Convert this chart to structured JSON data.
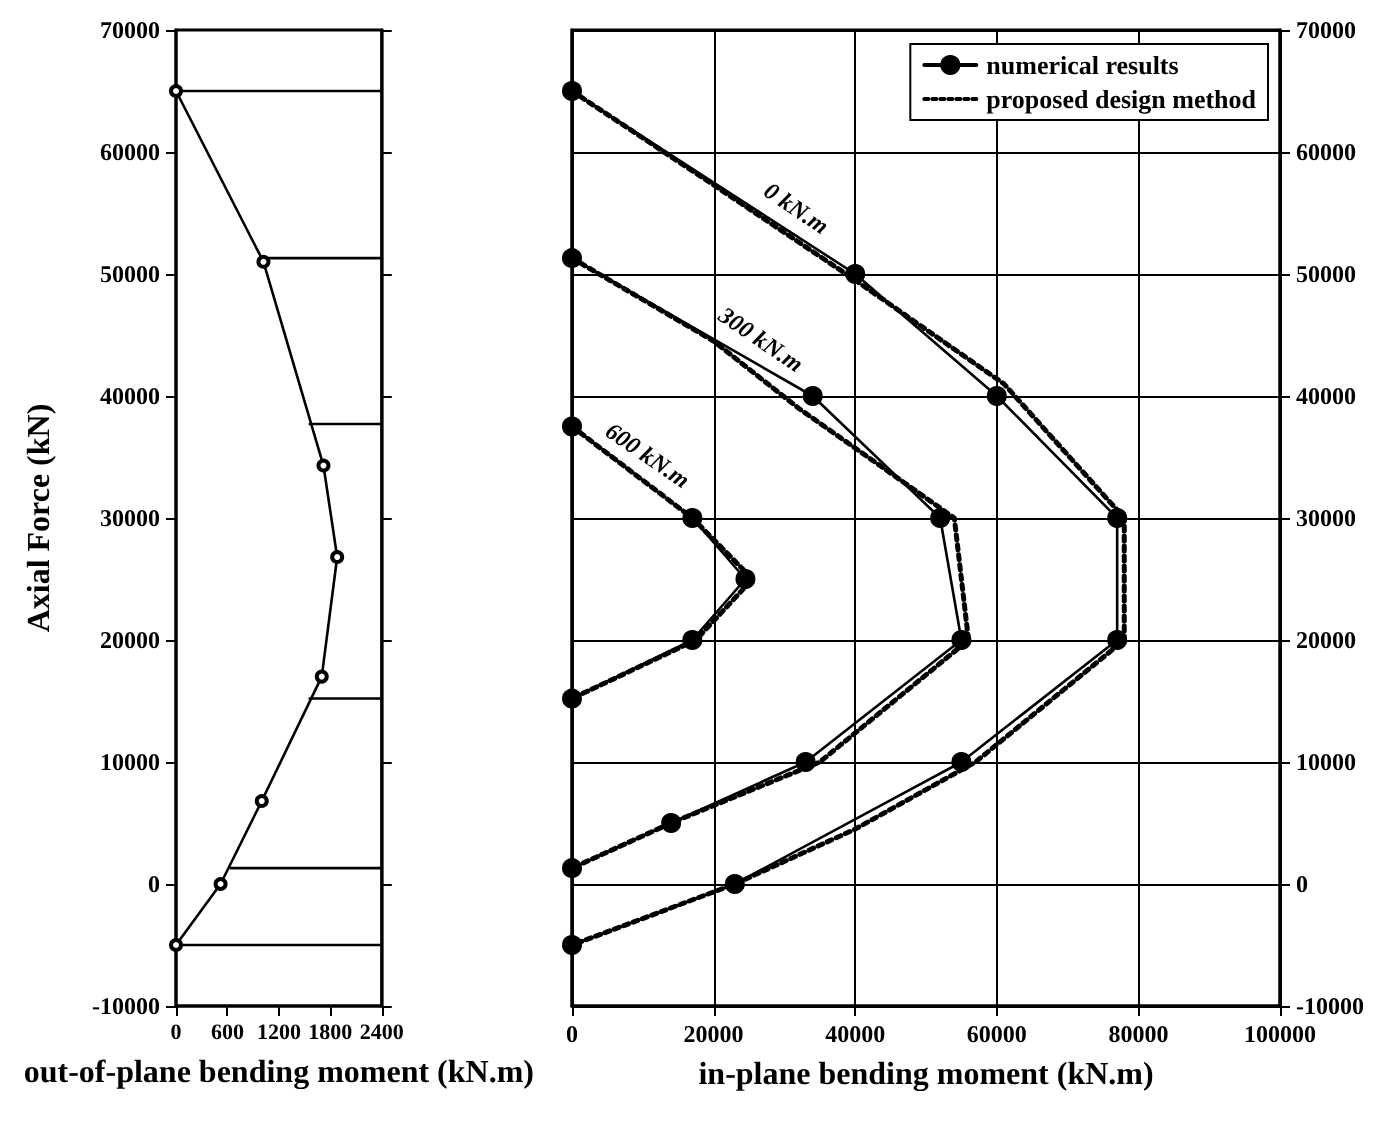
{
  "chart_data": [
    {
      "type": "line",
      "xlabel": "out-of-plane bending moment (kN.m)",
      "ylabel": "Axial Force (kN)",
      "xlim": [
        0,
        2400
      ],
      "xticks": [
        0,
        600,
        1200,
        1800,
        2400
      ],
      "ylim": [
        -10000,
        70000
      ],
      "yticks": [
        -10000,
        0,
        10000,
        20000,
        30000,
        40000,
        50000,
        60000,
        70000
      ],
      "grid": false,
      "series": [
        {
          "color": "#000000",
          "marker": "circle",
          "line_style": "solid",
          "x": [
            0,
            1020,
            1720,
            1880,
            1700,
            1000,
            520,
            0
          ],
          "values": [
            65000,
            51000,
            34300,
            26800,
            17000,
            6800,
            0,
            -5000
          ]
        },
        {
          "color": "#000000",
          "marker": "none",
          "line_style": "solid",
          "x": [
            0,
            2400
          ],
          "values": [
            65000,
            65000
          ]
        },
        {
          "color": "#000000",
          "marker": "none",
          "line_style": "solid",
          "x": [
            1040,
            2400
          ],
          "values": [
            51300,
            51300
          ]
        },
        {
          "color": "#000000",
          "marker": "none",
          "line_style": "solid",
          "x": [
            1560,
            2400
          ],
          "values": [
            37700,
            37700
          ]
        },
        {
          "color": "#000000",
          "marker": "none",
          "line_style": "solid",
          "x": [
            1560,
            2400
          ],
          "values": [
            15200,
            15200
          ]
        },
        {
          "color": "#000000",
          "marker": "none",
          "line_style": "solid",
          "x": [
            640,
            2400
          ],
          "values": [
            1300,
            1300
          ]
        },
        {
          "color": "#000000",
          "marker": "none",
          "line_style": "solid",
          "x": [
            0,
            2400
          ],
          "values": [
            -5000,
            -5000
          ]
        }
      ]
    },
    {
      "type": "line",
      "xlabel": "in-plane bending moment (kN.m)",
      "xlim": [
        0,
        100000
      ],
      "xticks": [
        0,
        20000,
        40000,
        60000,
        80000,
        100000
      ],
      "ylim": [
        -10000,
        70000
      ],
      "yticks": [
        -10000,
        0,
        10000,
        20000,
        30000,
        40000,
        50000,
        60000,
        70000
      ],
      "grid": true,
      "legend": "top right",
      "annotations": [
        {
          "text": "0 kN.m",
          "x": 30000,
          "y": 53750
        },
        {
          "text": "300 kN.m",
          "x": 25000,
          "y": 43000
        },
        {
          "text": "600 kN.m",
          "x": 9000,
          "y": 33500
        }
      ],
      "series": [
        {
          "name": "numerical results",
          "color": "#000000",
          "marker": "circle",
          "line_style": "solid",
          "x": [
            0,
            40000,
            60000,
            77000,
            77000,
            55000,
            23000,
            0
          ],
          "values": [
            65000,
            50000,
            40000,
            30000,
            20000,
            10000,
            0,
            -5000
          ]
        },
        {
          "color": "#000000",
          "marker": "circle",
          "line_style": "solid",
          "x": [
            0,
            34000,
            52000,
            55000,
            33000,
            14000,
            0
          ],
          "values": [
            51300,
            40000,
            30000,
            20000,
            10000,
            5000,
            1300
          ]
        },
        {
          "color": "#000000",
          "marker": "circle",
          "line_style": "solid",
          "x": [
            0,
            17000,
            24500,
            17000,
            0
          ],
          "values": [
            37500,
            30000,
            25000,
            20000,
            15200
          ]
        },
        {
          "name": "proposed design method",
          "color": "#000000",
          "marker": "none",
          "line_style": "dotted",
          "x": [
            0,
            20000,
            40000,
            61000,
            78000,
            78000,
            57000,
            40000,
            23000,
            0
          ],
          "values": [
            65000,
            57300,
            49500,
            41000,
            30000,
            20000,
            10000,
            4500,
            0,
            -5000
          ]
        },
        {
          "color": "#000000",
          "marker": "none",
          "line_style": "dotted",
          "x": [
            0,
            20000,
            32000,
            54000,
            56000,
            35000,
            14000,
            0
          ],
          "values": [
            51300,
            44500,
            39000,
            30000,
            20000,
            10000,
            5000,
            1300
          ]
        },
        {
          "color": "#000000",
          "marker": "none",
          "line_style": "dotted",
          "x": [
            0,
            17000,
            25500,
            17500,
            0
          ],
          "values": [
            37500,
            30000,
            25000,
            20000,
            15200
          ]
        }
      ]
    }
  ]
}
